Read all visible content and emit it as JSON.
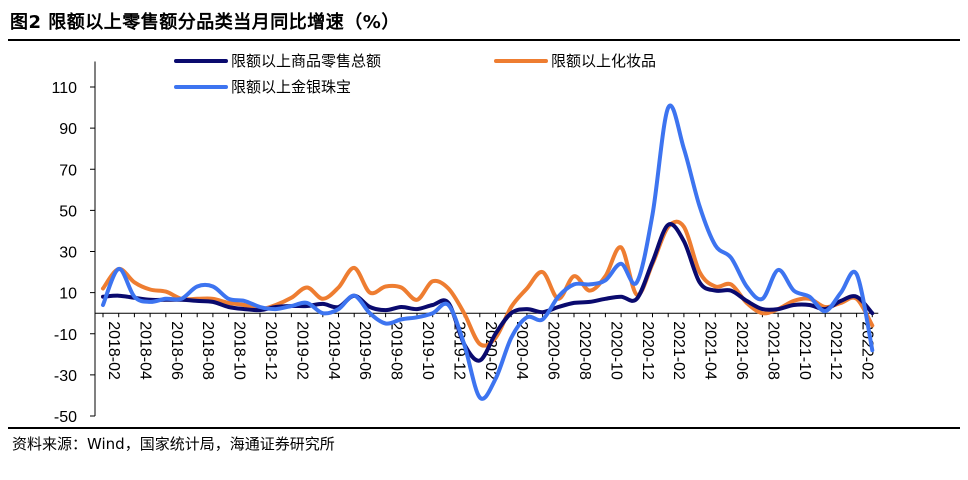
{
  "header": {
    "title": "图2  限额以上零售额分品类当月同比增速（%）"
  },
  "footer": {
    "source": "资料来源：Wind，国家统计局，海通证券研究所"
  },
  "chart_data": {
    "type": "line",
    "title": "图2  限额以上零售额分品类当月同比增速（%）",
    "xlabel": "",
    "ylabel": "",
    "ylim": [
      -50,
      120
    ],
    "yticks": [
      110,
      90,
      70,
      50,
      30,
      10,
      -10,
      -30,
      -50
    ],
    "x": [
      "2018-02",
      "2018-03",
      "2018-04",
      "2018-05",
      "2018-06",
      "2018-07",
      "2018-08",
      "2018-09",
      "2018-10",
      "2018-11",
      "2018-12",
      "2019-01",
      "2019-02",
      "2019-03",
      "2019-04",
      "2019-05",
      "2019-06",
      "2019-07",
      "2019-08",
      "2019-09",
      "2019-10",
      "2019-11",
      "2019-12",
      "2020-01",
      "2020-02",
      "2020-03",
      "2020-04",
      "2020-05",
      "2020-06",
      "2020-07",
      "2020-08",
      "2020-09",
      "2020-10",
      "2020-11",
      "2020-12",
      "2021-01",
      "2021-02",
      "2021-03",
      "2021-04",
      "2021-05",
      "2021-06",
      "2021-07",
      "2021-08",
      "2021-09",
      "2021-10",
      "2021-11",
      "2021-12",
      "2022-01",
      "2022-02",
      "2022-03"
    ],
    "xtick_labels": [
      "2018-02",
      "2018-04",
      "2018-06",
      "2018-08",
      "2018-10",
      "2018-12",
      "2019-02",
      "2019-04",
      "2019-06",
      "2019-08",
      "2019-10",
      "2019-12",
      "2020-02",
      "2020-04",
      "2020-06",
      "2020-08",
      "2020-10",
      "2020-12",
      "2021-02",
      "2021-04",
      "2021-06",
      "2021-08",
      "2021-10",
      "2021-12",
      "2022-02"
    ],
    "legend": {
      "position": "top"
    },
    "grid": false,
    "series": [
      {
        "name": "限额以上商品零售总额",
        "color": "#0a0a6e",
        "values": [
          8,
          8.5,
          7.5,
          6.5,
          6.5,
          6.5,
          6,
          5.5,
          3,
          2,
          1.5,
          3,
          3.5,
          3.5,
          4.5,
          3,
          8.5,
          3,
          1.5,
          3,
          2,
          4,
          5,
          -15,
          -23,
          -10,
          0,
          2,
          0.5,
          3,
          5,
          5.5,
          7,
          8,
          7,
          25,
          43,
          35,
          15,
          11,
          11,
          6,
          2,
          2,
          4,
          4,
          2,
          6,
          8,
          0
        ]
      },
      {
        "name": "限额以上化妆品",
        "color": "#ee7d31",
        "values": [
          12,
          21.5,
          15,
          11.5,
          10.5,
          7,
          7,
          7,
          5,
          4,
          2,
          4,
          7.5,
          12.5,
          7,
          12.5,
          22,
          10,
          13,
          12.5,
          6.5,
          15.5,
          12,
          0,
          -15,
          -12,
          3,
          12,
          20,
          7,
          18,
          11,
          18,
          32,
          9,
          24,
          42,
          42,
          20,
          13,
          14,
          5,
          0,
          2,
          6,
          7,
          3,
          5,
          7,
          -6
        ]
      },
      {
        "name": "限额以上金银珠宝",
        "color": "#3d74f0",
        "values": [
          4,
          21.5,
          8,
          5.5,
          7,
          7,
          13,
          13,
          7,
          6,
          3,
          2,
          3.5,
          5,
          0,
          2,
          8.5,
          0,
          -5,
          -3,
          -2,
          0,
          4,
          -15,
          -41,
          -32,
          -12,
          -2,
          -3,
          8,
          14,
          14,
          16,
          24,
          15,
          48,
          100,
          80,
          52,
          33,
          27,
          13,
          7,
          21,
          11,
          8,
          1,
          10,
          19,
          -18
        ]
      }
    ]
  }
}
